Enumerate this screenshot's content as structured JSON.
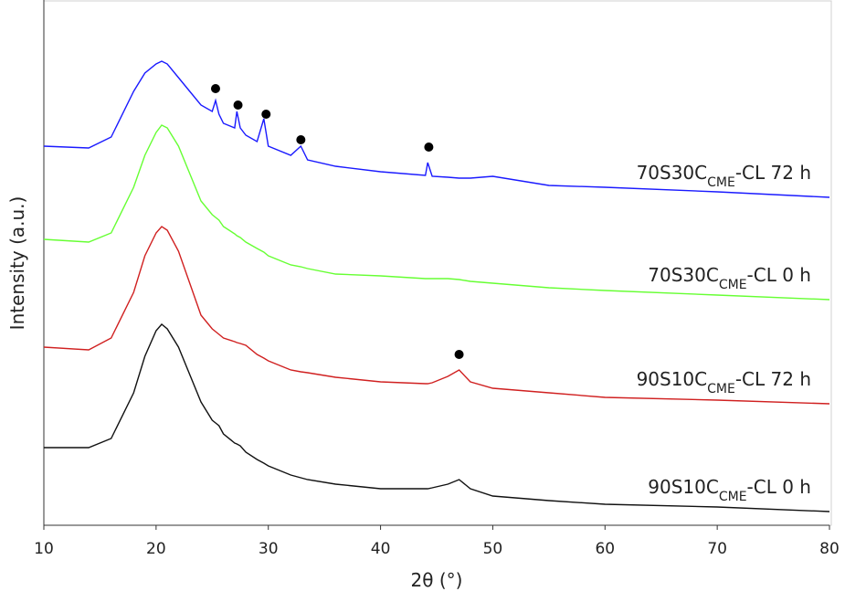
{
  "chart_data": {
    "type": "line",
    "x_label": "2θ (°)",
    "y_label": "Intensity (a.u.)",
    "xlim": [
      10,
      80
    ],
    "xticks": [
      10,
      20,
      30,
      40,
      50,
      60,
      70,
      80
    ],
    "ylim": [
      0,
      575
    ],
    "x": [
      10,
      14,
      16,
      18,
      19,
      20,
      20.5,
      21,
      22,
      23,
      24,
      25,
      25.3,
      25.6,
      26,
      27,
      27.2,
      27.5,
      28,
      29,
      29.6,
      30,
      32,
      32.9,
      33.5,
      36,
      40,
      44,
      44.2,
      44.6,
      46,
      47,
      48,
      50,
      55,
      60,
      70,
      80
    ],
    "series": [
      {
        "name": [
          "70S30C",
          "CME",
          "-CL 72 h"
        ],
        "color": "#1a1aff",
        "values": [
          415,
          413,
          425,
          475,
          495,
          505,
          508,
          505,
          490,
          475,
          460,
          453,
          465,
          450,
          440,
          435,
          453,
          435,
          427,
          420,
          445,
          415,
          405,
          415,
          400,
          393,
          387,
          383,
          397,
          382,
          381,
          380,
          380,
          382,
          372,
          370,
          365,
          359
        ]
      },
      {
        "name": [
          "70S30C",
          "CME",
          "-CL 0 h"
        ],
        "color": "#66ff33",
        "values": [
          313,
          310,
          320,
          370,
          405,
          430,
          438,
          435,
          415,
          385,
          355,
          340,
          337,
          334,
          327,
          319,
          317,
          315,
          310,
          303,
          299,
          295,
          285,
          283,
          281,
          275,
          273,
          270,
          270,
          270,
          270,
          269,
          267,
          265,
          260,
          257,
          252,
          247
        ]
      },
      {
        "name": [
          "90S10C",
          "CME",
          "-CL 72 h"
        ],
        "color": "#d02020",
        "values": [
          195,
          192,
          205,
          255,
          295,
          320,
          327,
          323,
          300,
          265,
          230,
          215,
          212,
          209,
          205,
          201,
          200,
          199,
          197,
          187,
          183,
          180,
          170,
          168,
          167,
          162,
          157,
          155,
          155,
          156,
          163,
          170,
          157,
          150,
          145,
          140,
          137,
          133
        ]
      },
      {
        "name": [
          "90S10C",
          "CME",
          "-CL 0 h"
        ],
        "color": "#111111",
        "values": [
          85,
          85,
          95,
          145,
          185,
          213,
          220,
          215,
          195,
          165,
          135,
          115,
          112,
          109,
          100,
          90,
          89,
          87,
          80,
          72,
          68,
          65,
          55,
          52,
          50,
          45,
          40,
          40,
          40,
          41,
          45,
          50,
          40,
          32,
          27,
          23,
          20,
          15
        ]
      }
    ],
    "markers": {
      "x": [
        25.3,
        27.3,
        29.8,
        32.9,
        44.3,
        47.0
      ],
      "y": [
        478,
        460,
        450,
        422,
        414,
        187
      ],
      "color": "#000000"
    }
  }
}
